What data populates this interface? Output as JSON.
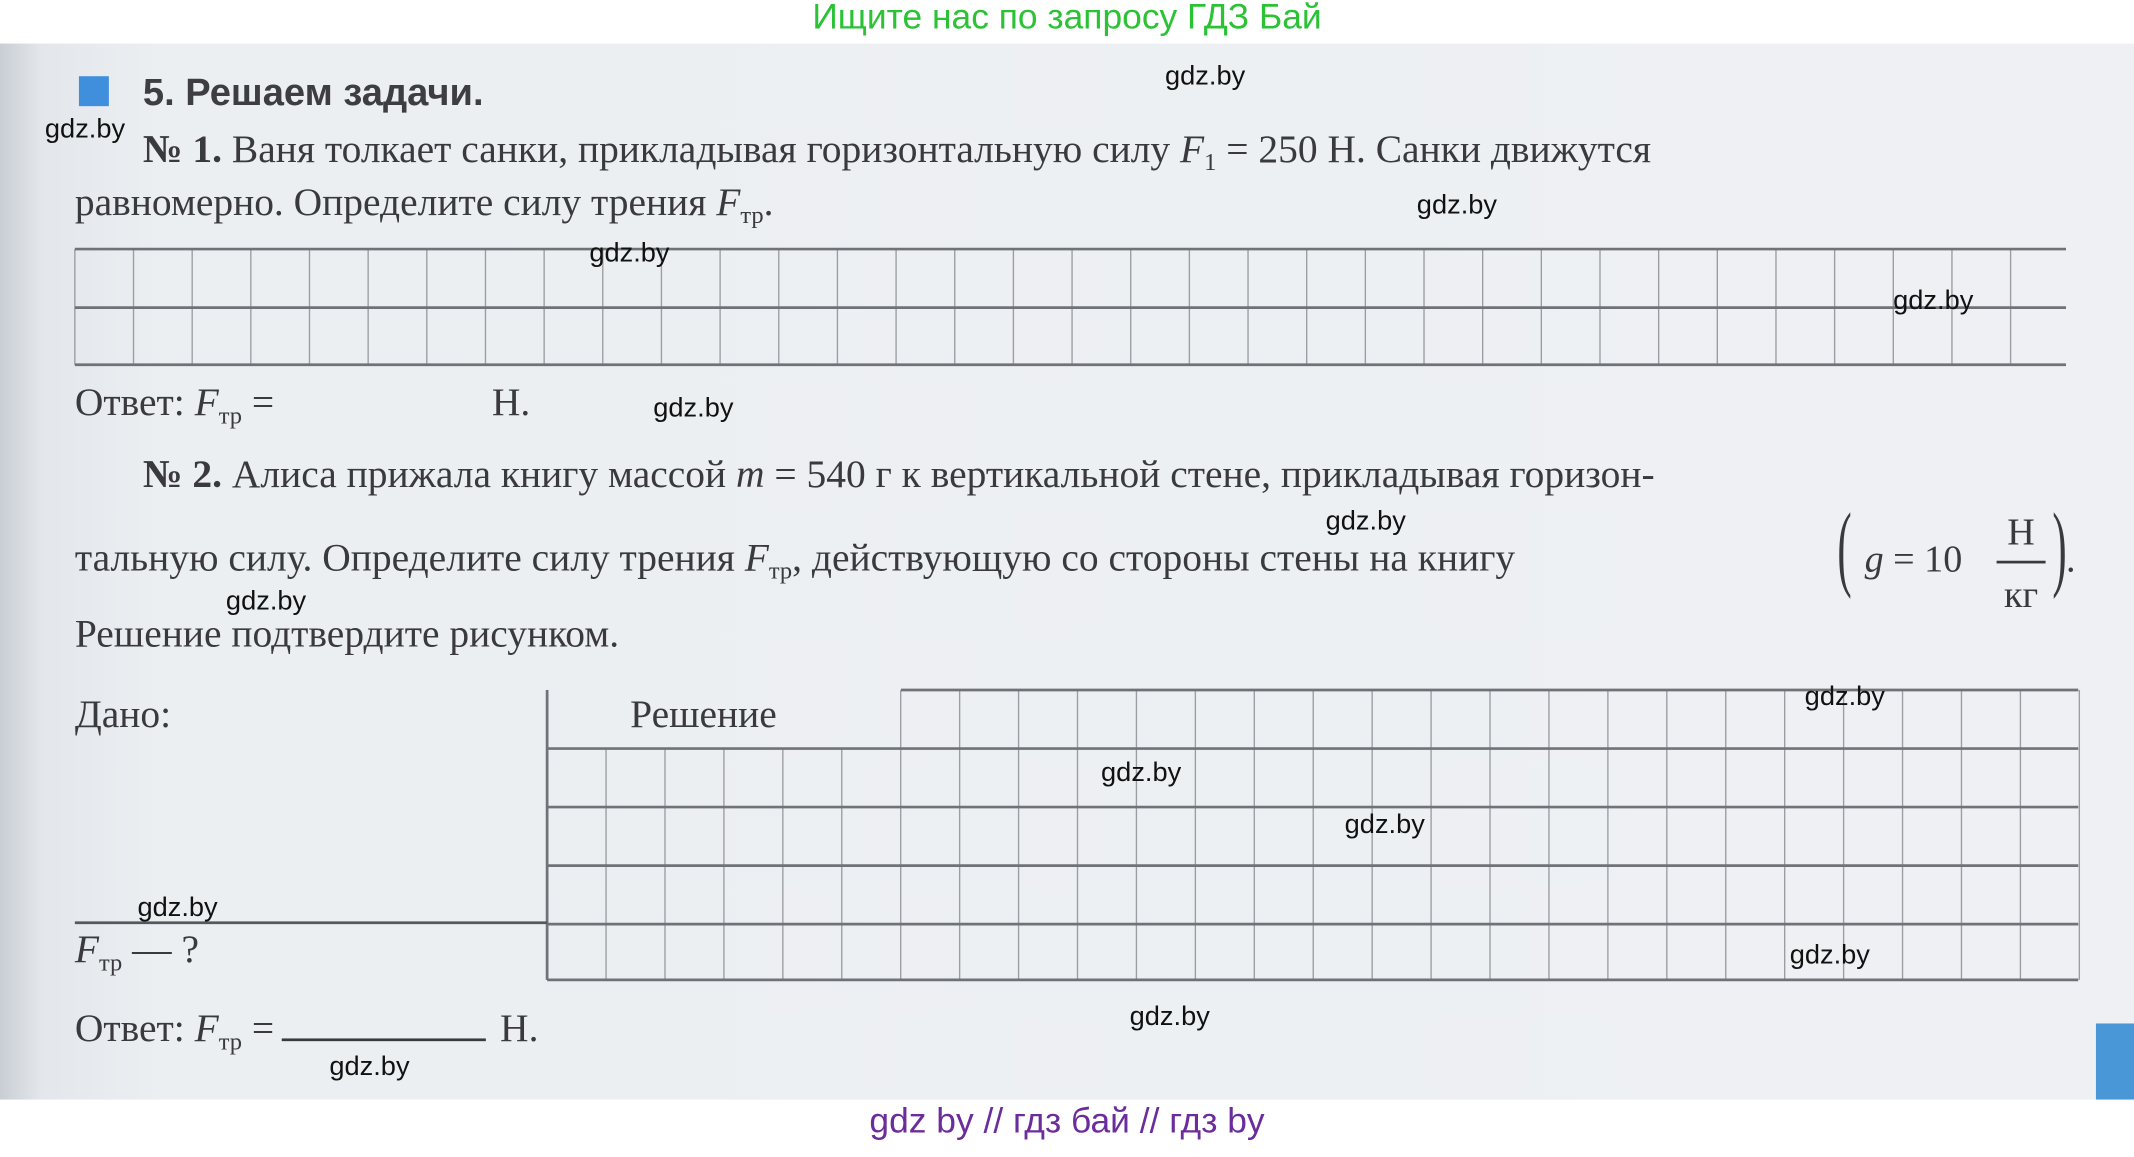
{
  "banner_top": "Ищите нас по запросу ГДЗ Бай",
  "banner_bottom": "gdz by  //  гдз бай  //  гдз by",
  "watermark": "gdz.by",
  "section": {
    "title": "5. Решаем задачи."
  },
  "task1": {
    "number": "№ 1.",
    "line1_a": "Ваня толкает санки, прикладывая горизонтальную силу ",
    "var_F": "F",
    "sub1": "1",
    "line1_b": " = 250 Н. Санки движутся",
    "line2": "равномерно. Определите силу трения ",
    "sub_tr": "тр",
    "answer_label": "Ответ: ",
    "answer_eq": " =",
    "answer_unit": "Н."
  },
  "task2": {
    "number": "№ 2.",
    "line1_a": "Алиса прижала книгу массой ",
    "var_m": "m",
    "line1_b": " = 540 г к вертикальной стене, прикладывая горизон-",
    "line2_a": "тальную силу. Определите силу трения ",
    "line2_b": ", действующую со стороны стены на книгу",
    "g_var": "g",
    "g_eq": " = 10",
    "g_num": "Н",
    "g_den": "кг",
    "line3": "Решение подтвердите рисунком.",
    "given_label": "Дано:",
    "solution_label": "Решение",
    "find": "— ?",
    "answer_label": "Ответ: ",
    "answer_eq": " =",
    "answer_unit": "Н."
  },
  "colors": {
    "accent_square": "#3f8fdc",
    "banner_top": "#2bc236",
    "banner_bottom": "#6b2c9c"
  }
}
